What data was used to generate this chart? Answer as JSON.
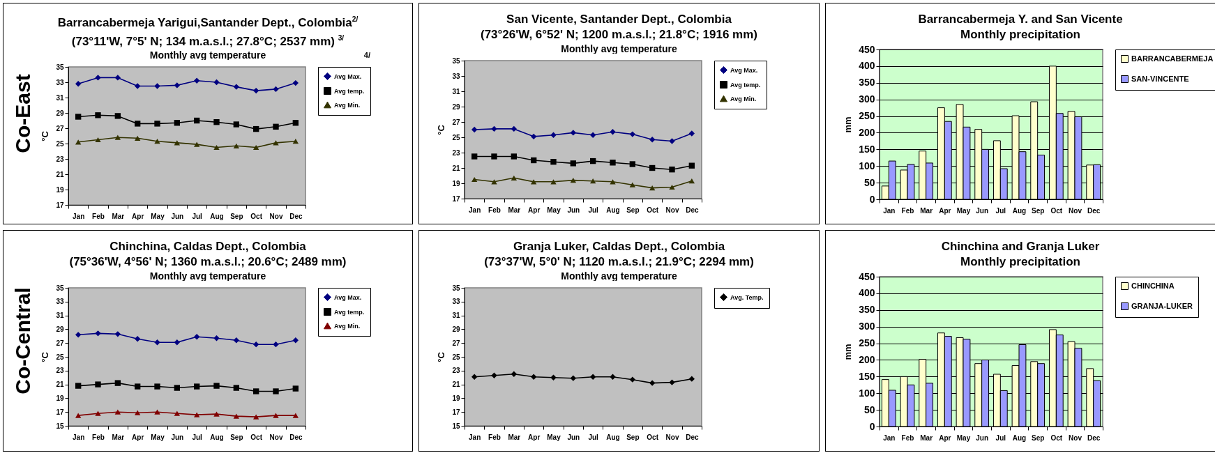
{
  "chart_data": [
    {
      "type": "line",
      "title": "Barrancabermeja Yarigui,Santander Dept., Colombia$^{2/}$",
      "subtitle": "(73°11'W, 7°5' N; 134 m.a.s.l.; 27.8°C; 2537 mm) $^{3/}$\nMonthly avg temperature",
      "ylabel": "°C",
      "annotations": [
        "Co-East",
        "4/"
      ],
      "categories": [
        "Jan",
        "Feb",
        "Mar",
        "Apr",
        "May",
        "Jun",
        "Jul",
        "Aug",
        "Sep",
        "Oct",
        "Nov",
        "Dec"
      ],
      "ylim": [
        17,
        35
      ],
      "yticks": [
        17,
        19,
        21,
        23,
        25,
        27,
        29,
        31,
        33,
        35
      ],
      "legend": "right",
      "series": [
        {
          "name": "Avg Max.",
          "color": "#000080",
          "marker": "diamond",
          "values": [
            32.8,
            33.6,
            33.6,
            32.5,
            32.5,
            32.6,
            33.2,
            33.0,
            32.4,
            31.9,
            32.1,
            32.9
          ]
        },
        {
          "name": "Avg temp.",
          "color": "#000000",
          "marker": "square",
          "values": [
            28.5,
            28.7,
            28.6,
            27.6,
            27.6,
            27.7,
            28.0,
            27.8,
            27.5,
            26.9,
            27.2,
            27.7
          ]
        },
        {
          "name": "Avg Min.",
          "color": "#333300",
          "marker": "triangle",
          "values": [
            25.2,
            25.5,
            25.8,
            25.7,
            25.3,
            25.1,
            24.9,
            24.5,
            24.7,
            24.5,
            25.1,
            25.3
          ]
        }
      ]
    },
    {
      "type": "line",
      "title": "San Vicente, Santander Dept., Colombia",
      "subtitle": "(73°26'W, 6°52' N; 1200 m.a.s.l.; 21.8°C; 1916 mm)\nMonthly avg temperature",
      "ylabel": "°C",
      "categories": [
        "Jan",
        "Feb",
        "Mar",
        "Apr",
        "May",
        "Jun",
        "Jul",
        "Aug",
        "Sep",
        "Oct",
        "Nov",
        "Dec"
      ],
      "ylim": [
        17,
        35
      ],
      "yticks": [
        17,
        19,
        21,
        23,
        25,
        27,
        29,
        31,
        33,
        35
      ],
      "legend": "right",
      "series": [
        {
          "name": "Avg Max.",
          "color": "#000080",
          "marker": "diamond",
          "values": [
            26.0,
            26.1,
            26.1,
            25.1,
            25.3,
            25.6,
            25.3,
            25.7,
            25.4,
            24.7,
            24.5,
            25.5
          ]
        },
        {
          "name": "Avg temp.",
          "color": "#000000",
          "marker": "square",
          "values": [
            22.5,
            22.5,
            22.5,
            22.0,
            21.8,
            21.6,
            21.9,
            21.7,
            21.5,
            21.0,
            20.8,
            21.3
          ]
        },
        {
          "name": "Avg Min.",
          "color": "#333300",
          "marker": "triangle",
          "values": [
            19.5,
            19.2,
            19.7,
            19.2,
            19.2,
            19.4,
            19.3,
            19.2,
            18.8,
            18.4,
            18.5,
            19.3
          ]
        }
      ]
    },
    {
      "type": "bar",
      "title": "Barrancabermeja Y. and San Vicente",
      "subtitle": "Monthly precipitation",
      "ylabel": "mm",
      "categories": [
        "Jan",
        "Feb",
        "Mar",
        "Apr",
        "May",
        "Jun",
        "Jul",
        "Aug",
        "Sep",
        "Oct",
        "Nov",
        "Dec"
      ],
      "ylim": [
        0,
        450
      ],
      "yticks": [
        0,
        50,
        100,
        150,
        200,
        250,
        300,
        350,
        400,
        450
      ],
      "grid": "y",
      "legend": "right",
      "series": [
        {
          "name": "BARRANCABERMEJA",
          "color": "#ffffcc",
          "values": [
            40,
            88,
            145,
            275,
            285,
            210,
            176,
            251,
            293,
            400,
            264,
            103
          ]
        },
        {
          "name": "SAN-VINCENTE",
          "color": "#9999ff",
          "values": [
            115,
            105,
            109,
            234,
            217,
            150,
            92,
            143,
            133,
            258,
            248,
            104
          ]
        }
      ]
    },
    {
      "type": "line",
      "title": "Chinchina, Caldas Dept., Colombia",
      "subtitle": "(75°36'W, 4°56' N; 1360 m.a.s.l.; 20.6°C; 2489 mm)\nMonthly avg temperature",
      "ylabel": "°C",
      "annotations": [
        "Co-Central"
      ],
      "categories": [
        "Jan",
        "Feb",
        "Mar",
        "Apr",
        "May",
        "Jun",
        "Jul",
        "Aug",
        "Sep",
        "Oct",
        "Nov",
        "Dec"
      ],
      "ylim": [
        15,
        35
      ],
      "yticks": [
        15,
        17,
        19,
        21,
        23,
        25,
        27,
        29,
        31,
        33,
        35
      ],
      "legend": "right",
      "series": [
        {
          "name": "Avg Max.",
          "color": "#000080",
          "marker": "diamond",
          "values": [
            28.2,
            28.4,
            28.3,
            27.6,
            27.1,
            27.1,
            27.9,
            27.7,
            27.4,
            26.8,
            26.8,
            27.4
          ]
        },
        {
          "name": "Avg temp.",
          "color": "#000000",
          "marker": "square",
          "values": [
            20.8,
            21.0,
            21.2,
            20.7,
            20.7,
            20.5,
            20.7,
            20.8,
            20.5,
            20.0,
            20.0,
            20.4
          ]
        },
        {
          "name": "Avg Min.",
          "color": "#800000",
          "marker": "triangle",
          "values": [
            16.5,
            16.8,
            17.0,
            16.9,
            17.0,
            16.8,
            16.6,
            16.7,
            16.4,
            16.3,
            16.5,
            16.5
          ]
        }
      ]
    },
    {
      "type": "line",
      "title": "Granja Luker, Caldas Dept., Colombia",
      "subtitle": "(73°37'W, 5°0' N; 1120 m.a.s.l.; 21.9°C; 2294 mm)\nMonthly avg temperature",
      "ylabel": "°C",
      "categories": [
        "Jan",
        "Feb",
        "Mar",
        "Apr",
        "May",
        "Jun",
        "Jul",
        "Aug",
        "Sep",
        "Oct",
        "Nov",
        "Dec"
      ],
      "ylim": [
        15,
        35
      ],
      "yticks": [
        15,
        17,
        19,
        21,
        23,
        25,
        27,
        29,
        31,
        33,
        35
      ],
      "legend": "right",
      "series": [
        {
          "name": "Avg. Temp.",
          "color": "#000000",
          "marker": "diamond",
          "values": [
            22.1,
            22.3,
            22.5,
            22.1,
            22.0,
            21.9,
            22.1,
            22.1,
            21.7,
            21.2,
            21.3,
            21.8
          ]
        }
      ]
    },
    {
      "type": "bar",
      "title": "Chinchina and Granja Luker",
      "subtitle": "Monthly precipitation",
      "ylabel": "mm",
      "categories": [
        "Jan",
        "Feb",
        "Mar",
        "Apr",
        "May",
        "Jun",
        "Jul",
        "Aug",
        "Sep",
        "Oct",
        "Nov",
        "Dec"
      ],
      "ylim": [
        0,
        450
      ],
      "yticks": [
        0,
        50,
        100,
        150,
        200,
        250,
        300,
        350,
        400,
        450
      ],
      "grid": "y",
      "legend": "right",
      "series": [
        {
          "name": "CHINCHINA",
          "color": "#ffffcc",
          "values": [
            141,
            150,
            202,
            281,
            267,
            189,
            157,
            183,
            195,
            291,
            255,
            174
          ]
        },
        {
          "name": "GRANJA-LUKER",
          "color": "#9999ff",
          "values": [
            109,
            125,
            130,
            271,
            262,
            200,
            108,
            246,
            189,
            275,
            235,
            138
          ]
        }
      ]
    }
  ]
}
